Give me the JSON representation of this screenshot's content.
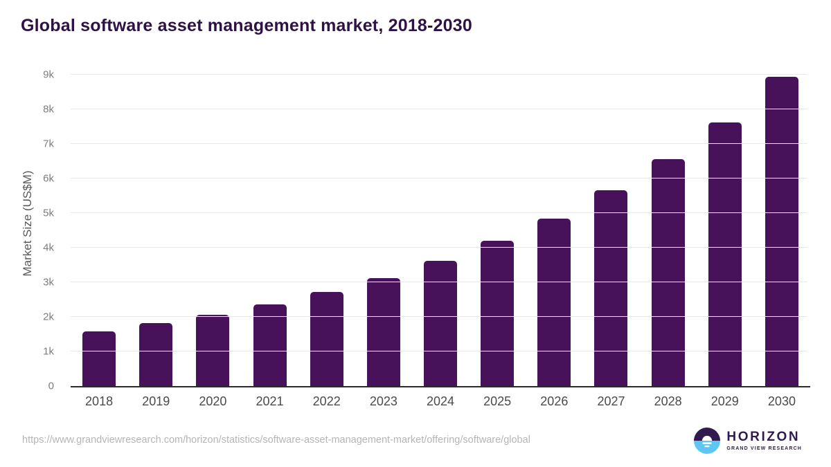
{
  "title": "Global software asset management market, 2018-2030",
  "chart_data": {
    "type": "bar",
    "title": "Global software asset management market, 2018-2030",
    "categories": [
      "2018",
      "2019",
      "2020",
      "2021",
      "2022",
      "2023",
      "2024",
      "2025",
      "2026",
      "2027",
      "2028",
      "2029",
      "2030"
    ],
    "values": [
      1590,
      1820,
      2055,
      2360,
      2715,
      3130,
      3615,
      4200,
      4850,
      5660,
      6555,
      7630,
      8935
    ],
    "xlabel": "",
    "ylabel": "Market Size (US$M)",
    "ylim": [
      0,
      9000
    ],
    "yticks": [
      0,
      1000,
      2000,
      3000,
      4000,
      5000,
      6000,
      7000,
      8000,
      9000
    ],
    "ytick_labels": [
      "0",
      "1k",
      "2k",
      "3k",
      "4k",
      "5k",
      "6k",
      "7k",
      "8k",
      "9k"
    ],
    "grid": true,
    "legend": false,
    "bar_color": "#471259"
  },
  "footer": {
    "source_url": "https://www.grandviewresearch.com/horizon/statistics/software-asset-management-market/offering/software/global",
    "logo": {
      "icon": "horizon-sunrise-icon",
      "title": "HORIZON",
      "subtitle": "GRAND VIEW RESEARCH"
    }
  },
  "colors": {
    "background": "#ffffff",
    "title_text": "#2e1245",
    "bar": "#471259",
    "grid_line": "#e8e8e8",
    "axis_line": "#2a2a2a",
    "x_tick_text": "#4a4a4a",
    "y_tick_text": "#7d7d7d",
    "y_axis_title_text": "#595959",
    "source_text": "#b5b5b5",
    "logo_purple": "#2f1b4e",
    "logo_blue": "#5ec6f2"
  }
}
